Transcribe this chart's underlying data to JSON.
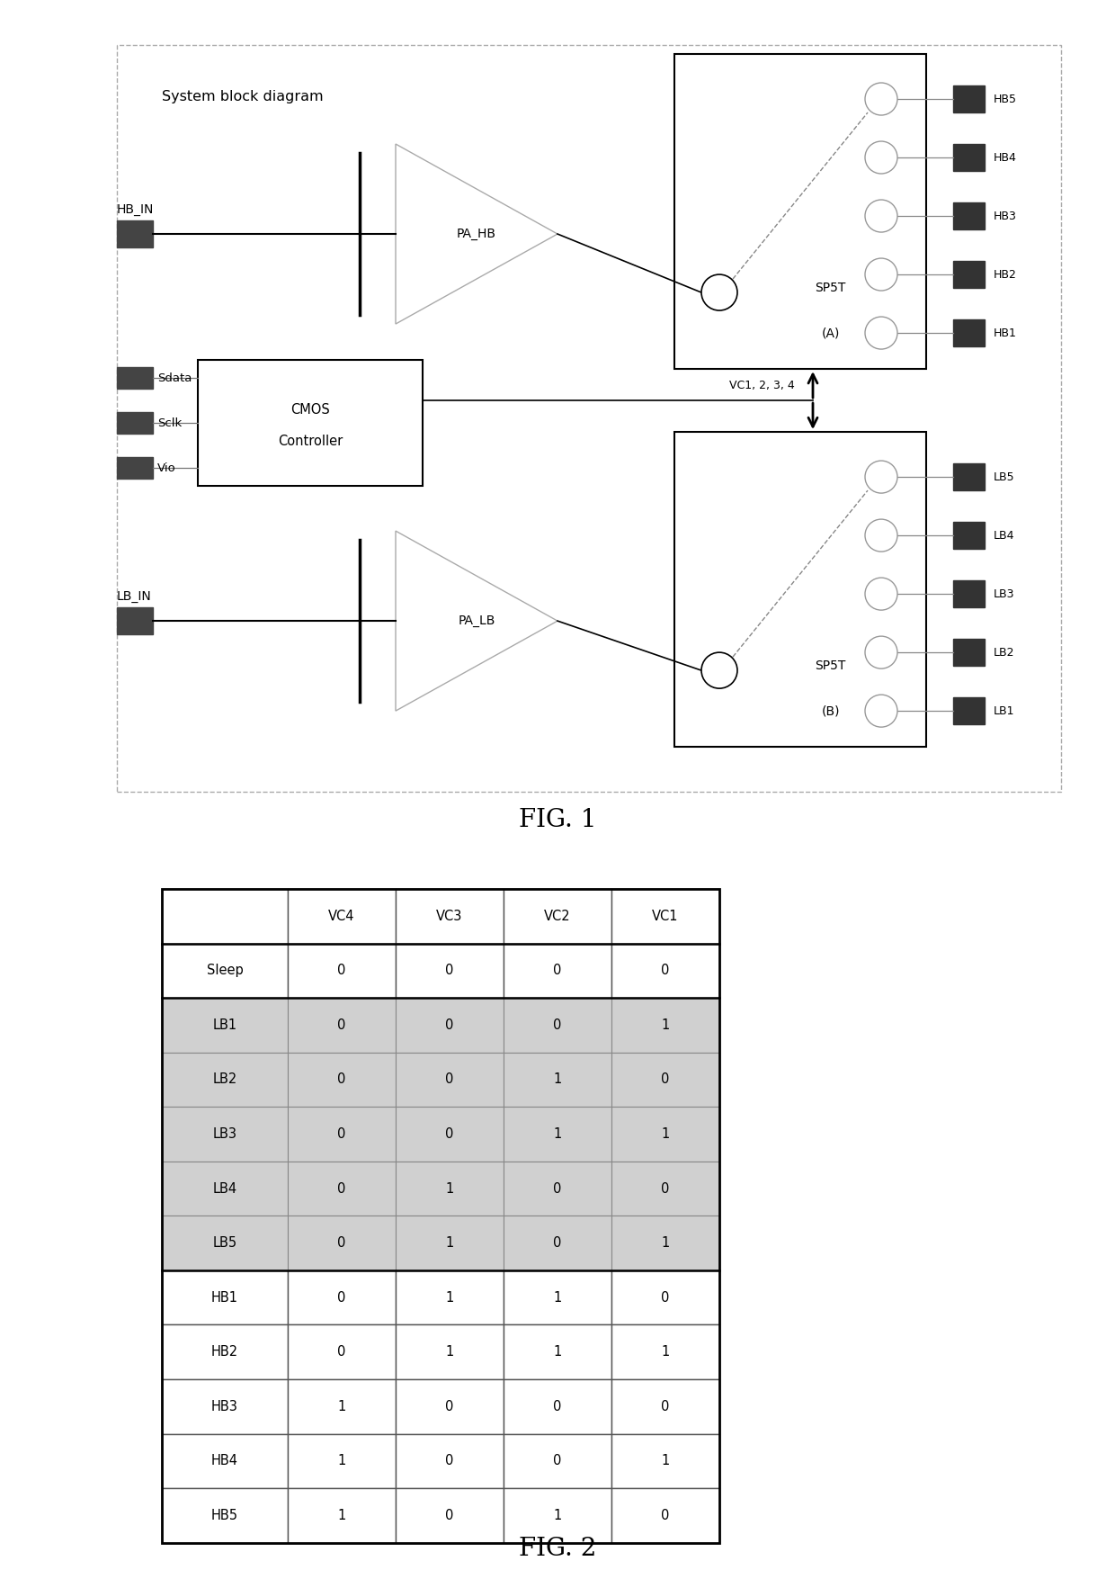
{
  "fig1_title": "System block diagram",
  "fig1_caption": "FIG. 1",
  "fig2_caption": "FIG. 2",
  "table_headers": [
    "",
    "VC4",
    "VC3",
    "VC2",
    "VC1"
  ],
  "table_rows": [
    [
      "Sleep",
      "0",
      "0",
      "0",
      "0"
    ],
    [
      "LB1",
      "0",
      "0",
      "0",
      "1"
    ],
    [
      "LB2",
      "0",
      "0",
      "1",
      "0"
    ],
    [
      "LB3",
      "0",
      "0",
      "1",
      "1"
    ],
    [
      "LB4",
      "0",
      "1",
      "0",
      "0"
    ],
    [
      "LB5",
      "0",
      "1",
      "0",
      "1"
    ],
    [
      "HB1",
      "0",
      "1",
      "1",
      "0"
    ],
    [
      "HB2",
      "0",
      "1",
      "1",
      "1"
    ],
    [
      "HB3",
      "1",
      "0",
      "0",
      "0"
    ],
    [
      "HB4",
      "1",
      "0",
      "0",
      "1"
    ],
    [
      "HB5",
      "1",
      "0",
      "1",
      "0"
    ]
  ],
  "shaded_color": "#d0d0d0",
  "white_color": "#ffffff",
  "background_color": "#ffffff"
}
